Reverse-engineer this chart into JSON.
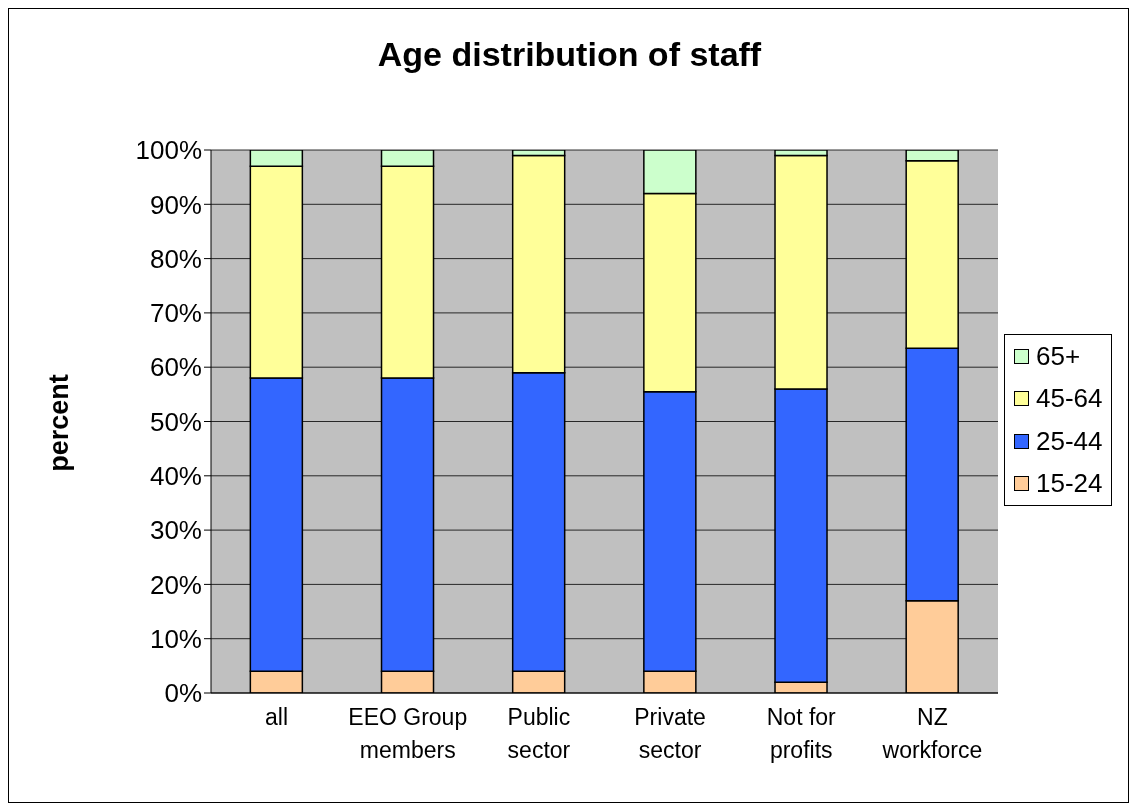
{
  "chart_data": {
    "type": "bar",
    "title": "Age distribution of staff",
    "ylabel": "percent",
    "categories": [
      "all",
      "EEO Group members",
      "Public sector",
      "Private sector",
      "Not for profits",
      "NZ workforce"
    ],
    "series": [
      {
        "name": "15-24",
        "color": "#ffcc99",
        "values": [
          4,
          4,
          4,
          4,
          2,
          17
        ]
      },
      {
        "name": "25-44",
        "color": "#3366ff",
        "values": [
          54,
          54,
          55,
          51.5,
          54,
          46.5
        ]
      },
      {
        "name": "45-64",
        "color": "#ffff99",
        "values": [
          39,
          39,
          40,
          36.5,
          43,
          34.5
        ]
      },
      {
        "name": "65+",
        "color": "#ccffcc",
        "values": [
          3,
          3,
          1,
          8,
          1,
          2
        ]
      }
    ],
    "stacked": true,
    "ylim": [
      0,
      100
    ],
    "yticks": [
      {
        "value": 0,
        "label": "0%"
      },
      {
        "value": 10,
        "label": "10%"
      },
      {
        "value": 20,
        "label": "20%"
      },
      {
        "value": 30,
        "label": "30%"
      },
      {
        "value": 40,
        "label": "40%"
      },
      {
        "value": 50,
        "label": "50%"
      },
      {
        "value": 60,
        "label": "60%"
      },
      {
        "value": 70,
        "label": "70%"
      },
      {
        "value": 80,
        "label": "80%"
      },
      {
        "value": 90,
        "label": "90%"
      },
      {
        "value": 100,
        "label": "100%"
      }
    ],
    "grid": "y",
    "legend": "right"
  }
}
